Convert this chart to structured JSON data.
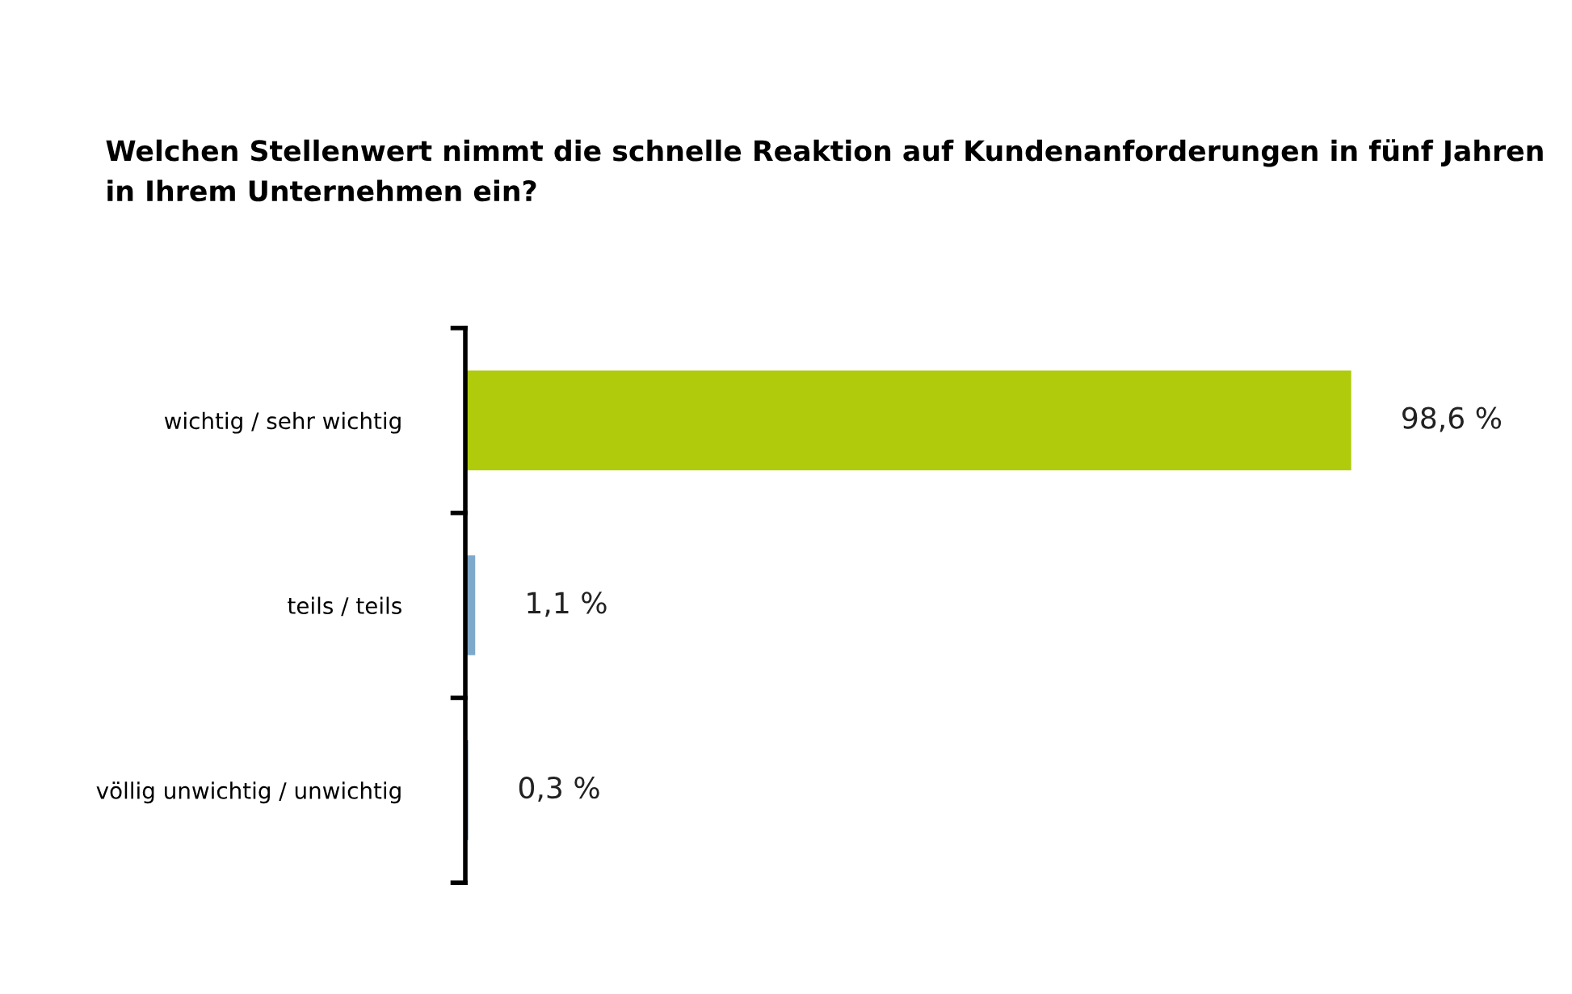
{
  "chart_data": {
    "type": "bar",
    "orientation": "horizontal",
    "title": "Welchen Stellenwert nimmt die schnelle Reaktion auf Kundenanforderungen in fünf Jahren in Ihrem Unternehmen ein?",
    "categories": [
      "wichtig / sehr wichtig",
      "teils / teils",
      "völlig unwichtig / unwichtig"
    ],
    "values": [
      98.6,
      1.1,
      0.3
    ],
    "colors": [
      "#b0cb0c",
      "#7fa9cb",
      "#0b3f6e"
    ],
    "value_labels": [
      "98,6 %",
      "1,1 %",
      "0,3 %"
    ]
  }
}
